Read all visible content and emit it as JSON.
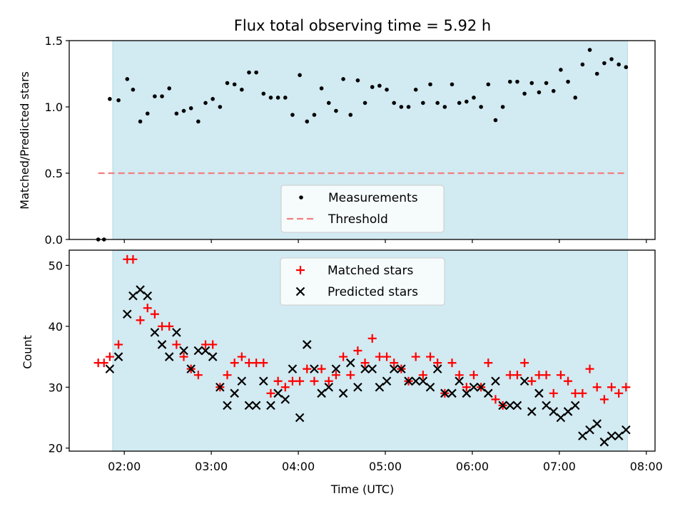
{
  "chart_data": {
    "type": "scatter",
    "title": "Flux total observing time = 5.92 h",
    "xlabel": "Time (UTC)",
    "x_ticks": [
      "02:00",
      "03:00",
      "04:00",
      "05:00",
      "06:00",
      "07:00",
      "08:00"
    ],
    "xlim": [
      "01:22",
      "08:06"
    ],
    "shaded_region": {
      "start": "01:52",
      "end": "07:47",
      "color": "#add8e6"
    },
    "colors": {
      "shade": "#add8e6",
      "threshold": "#f08080",
      "measurements": "#000000",
      "matched": "#ff0000",
      "predicted": "#000000"
    },
    "panels": [
      {
        "ylabel": "Matched/Predicted stars",
        "ylim": [
          0,
          1.5
        ],
        "y_ticks": [
          "0.0",
          "0.5",
          "1.0",
          "1.5"
        ],
        "legend_position": "lower-center",
        "series": [
          {
            "name": "Measurements",
            "marker": "dot",
            "points": [
              [
                "01:42",
                0.0
              ],
              [
                "01:46",
                0.0
              ],
              [
                "01:50",
                1.06
              ],
              [
                "01:56",
                1.05
              ],
              [
                "02:02",
                1.21
              ],
              [
                "02:06",
                1.13
              ],
              [
                "02:11",
                0.89
              ],
              [
                "02:16",
                0.95
              ],
              [
                "02:21",
                1.08
              ],
              [
                "02:26",
                1.08
              ],
              [
                "02:31",
                1.14
              ],
              [
                "02:36",
                0.95
              ],
              [
                "02:41",
                0.97
              ],
              [
                "02:46",
                0.99
              ],
              [
                "02:51",
                0.89
              ],
              [
                "02:56",
                1.03
              ],
              [
                "03:01",
                1.06
              ],
              [
                "03:06",
                1.0
              ],
              [
                "03:11",
                1.18
              ],
              [
                "03:16",
                1.17
              ],
              [
                "03:21",
                1.13
              ],
              [
                "03:26",
                1.26
              ],
              [
                "03:31",
                1.26
              ],
              [
                "03:36",
                1.1
              ],
              [
                "03:41",
                1.07
              ],
              [
                "03:46",
                1.07
              ],
              [
                "03:51",
                1.07
              ],
              [
                "03:56",
                0.94
              ],
              [
                "04:01",
                1.24
              ],
              [
                "04:06",
                0.89
              ],
              [
                "04:11",
                0.94
              ],
              [
                "04:16",
                1.14
              ],
              [
                "04:21",
                1.03
              ],
              [
                "04:26",
                0.97
              ],
              [
                "04:31",
                1.21
              ],
              [
                "04:36",
                0.94
              ],
              [
                "04:41",
                1.2
              ],
              [
                "04:46",
                1.03
              ],
              [
                "04:51",
                1.15
              ],
              [
                "04:56",
                1.16
              ],
              [
                "05:01",
                1.13
              ],
              [
                "05:06",
                1.03
              ],
              [
                "05:11",
                1.0
              ],
              [
                "05:16",
                1.0
              ],
              [
                "05:21",
                1.13
              ],
              [
                "05:26",
                1.03
              ],
              [
                "05:31",
                1.17
              ],
              [
                "05:36",
                1.03
              ],
              [
                "05:41",
                1.0
              ],
              [
                "05:46",
                1.17
              ],
              [
                "05:51",
                1.03
              ],
              [
                "05:56",
                1.04
              ],
              [
                "06:01",
                1.07
              ],
              [
                "06:06",
                1.0
              ],
              [
                "06:11",
                1.17
              ],
              [
                "06:16",
                0.9
              ],
              [
                "06:21",
                1.0
              ],
              [
                "06:26",
                1.19
              ],
              [
                "06:31",
                1.19
              ],
              [
                "06:36",
                1.1
              ],
              [
                "06:41",
                1.18
              ],
              [
                "06:46",
                1.11
              ],
              [
                "06:51",
                1.18
              ],
              [
                "06:56",
                1.12
              ],
              [
                "07:01",
                1.28
              ],
              [
                "07:06",
                1.19
              ],
              [
                "07:11",
                1.07
              ],
              [
                "07:16",
                1.32
              ],
              [
                "07:21",
                1.43
              ],
              [
                "07:26",
                1.25
              ],
              [
                "07:31",
                1.33
              ],
              [
                "07:36",
                1.36
              ],
              [
                "07:41",
                1.32
              ],
              [
                "07:46",
                1.3
              ]
            ]
          },
          {
            "name": "Threshold",
            "marker": "dashed-line",
            "points": [
              [
                "01:42",
                0.5
              ],
              [
                "07:46",
                0.5
              ]
            ]
          }
        ]
      },
      {
        "ylabel": "Count",
        "ylim": [
          19.5,
          52.5
        ],
        "y_ticks": [
          "20",
          "30",
          "40",
          "50"
        ],
        "legend_position": "upper-center",
        "series": [
          {
            "name": "Matched stars",
            "marker": "plus",
            "points": [
              [
                "01:42",
                34
              ],
              [
                "01:46",
                34
              ],
              [
                "01:50",
                35
              ],
              [
                "01:56",
                37
              ],
              [
                "02:02",
                51
              ],
              [
                "02:06",
                51
              ],
              [
                "02:11",
                41
              ],
              [
                "02:16",
                43
              ],
              [
                "02:21",
                42
              ],
              [
                "02:26",
                40
              ],
              [
                "02:31",
                40
              ],
              [
                "02:36",
                37
              ],
              [
                "02:41",
                35
              ],
              [
                "02:46",
                33
              ],
              [
                "02:51",
                32
              ],
              [
                "02:56",
                37
              ],
              [
                "03:01",
                37
              ],
              [
                "03:06",
                30
              ],
              [
                "03:11",
                32
              ],
              [
                "03:16",
                34
              ],
              [
                "03:21",
                35
              ],
              [
                "03:26",
                34
              ],
              [
                "03:31",
                34
              ],
              [
                "03:36",
                34
              ],
              [
                "03:41",
                29
              ],
              [
                "03:46",
                31
              ],
              [
                "03:51",
                30
              ],
              [
                "03:56",
                31
              ],
              [
                "04:01",
                31
              ],
              [
                "04:06",
                33
              ],
              [
                "04:11",
                31
              ],
              [
                "04:16",
                33
              ],
              [
                "04:21",
                31
              ],
              [
                "04:26",
                32
              ],
              [
                "04:31",
                35
              ],
              [
                "04:36",
                32
              ],
              [
                "04:41",
                36
              ],
              [
                "04:46",
                34
              ],
              [
                "04:51",
                38
              ],
              [
                "04:56",
                35
              ],
              [
                "05:01",
                35
              ],
              [
                "05:06",
                34
              ],
              [
                "05:11",
                33
              ],
              [
                "05:16",
                31
              ],
              [
                "05:21",
                35
              ],
              [
                "05:26",
                32
              ],
              [
                "05:31",
                35
              ],
              [
                "05:36",
                34
              ],
              [
                "05:41",
                29
              ],
              [
                "05:46",
                34
              ],
              [
                "05:51",
                32
              ],
              [
                "05:56",
                30
              ],
              [
                "06:01",
                32
              ],
              [
                "06:06",
                30
              ],
              [
                "06:11",
                34
              ],
              [
                "06:16",
                28
              ],
              [
                "06:21",
                27
              ],
              [
                "06:26",
                32
              ],
              [
                "06:31",
                32
              ],
              [
                "06:36",
                34
              ],
              [
                "06:41",
                31
              ],
              [
                "06:46",
                32
              ],
              [
                "06:51",
                32
              ],
              [
                "06:56",
                29
              ],
              [
                "07:01",
                32
              ],
              [
                "07:06",
                31
              ],
              [
                "07:11",
                29
              ],
              [
                "07:16",
                29
              ],
              [
                "07:21",
                33
              ],
              [
                "07:26",
                30
              ],
              [
                "07:31",
                28
              ],
              [
                "07:36",
                30
              ],
              [
                "07:41",
                29
              ],
              [
                "07:46",
                30
              ]
            ]
          },
          {
            "name": "Predicted stars",
            "marker": "x",
            "points": [
              [
                "01:50",
                33
              ],
              [
                "01:56",
                35
              ],
              [
                "02:02",
                42
              ],
              [
                "02:06",
                45
              ],
              [
                "02:11",
                46
              ],
              [
                "02:16",
                45
              ],
              [
                "02:21",
                39
              ],
              [
                "02:26",
                37
              ],
              [
                "02:31",
                35
              ],
              [
                "02:36",
                39
              ],
              [
                "02:41",
                36
              ],
              [
                "02:46",
                33
              ],
              [
                "02:51",
                36
              ],
              [
                "02:56",
                36
              ],
              [
                "03:01",
                35
              ],
              [
                "03:06",
                30
              ],
              [
                "03:11",
                27
              ],
              [
                "03:16",
                29
              ],
              [
                "03:21",
                31
              ],
              [
                "03:26",
                27
              ],
              [
                "03:31",
                27
              ],
              [
                "03:36",
                31
              ],
              [
                "03:41",
                27
              ],
              [
                "03:46",
                29
              ],
              [
                "03:51",
                28
              ],
              [
                "03:56",
                33
              ],
              [
                "04:01",
                25
              ],
              [
                "04:06",
                37
              ],
              [
                "04:11",
                33
              ],
              [
                "04:16",
                29
              ],
              [
                "04:21",
                30
              ],
              [
                "04:26",
                33
              ],
              [
                "04:31",
                29
              ],
              [
                "04:36",
                34
              ],
              [
                "04:41",
                30
              ],
              [
                "04:46",
                33
              ],
              [
                "04:51",
                33
              ],
              [
                "04:56",
                30
              ],
              [
                "05:01",
                31
              ],
              [
                "05:06",
                33
              ],
              [
                "05:11",
                33
              ],
              [
                "05:16",
                31
              ],
              [
                "05:21",
                31
              ],
              [
                "05:26",
                31
              ],
              [
                "05:31",
                30
              ],
              [
                "05:36",
                33
              ],
              [
                "05:41",
                29
              ],
              [
                "05:46",
                29
              ],
              [
                "05:51",
                31
              ],
              [
                "05:56",
                29
              ],
              [
                "06:01",
                30
              ],
              [
                "06:06",
                30
              ],
              [
                "06:11",
                29
              ],
              [
                "06:16",
                31
              ],
              [
                "06:21",
                27
              ],
              [
                "06:26",
                27
              ],
              [
                "06:31",
                27
              ],
              [
                "06:36",
                31
              ],
              [
                "06:41",
                26
              ],
              [
                "06:46",
                29
              ],
              [
                "06:51",
                27
              ],
              [
                "06:56",
                26
              ],
              [
                "07:01",
                25
              ],
              [
                "07:06",
                26
              ],
              [
                "07:11",
                27
              ],
              [
                "07:16",
                22
              ],
              [
                "07:21",
                23
              ],
              [
                "07:26",
                24
              ],
              [
                "07:31",
                21
              ],
              [
                "07:36",
                22
              ],
              [
                "07:41",
                22
              ],
              [
                "07:46",
                23
              ]
            ]
          }
        ]
      }
    ]
  }
}
